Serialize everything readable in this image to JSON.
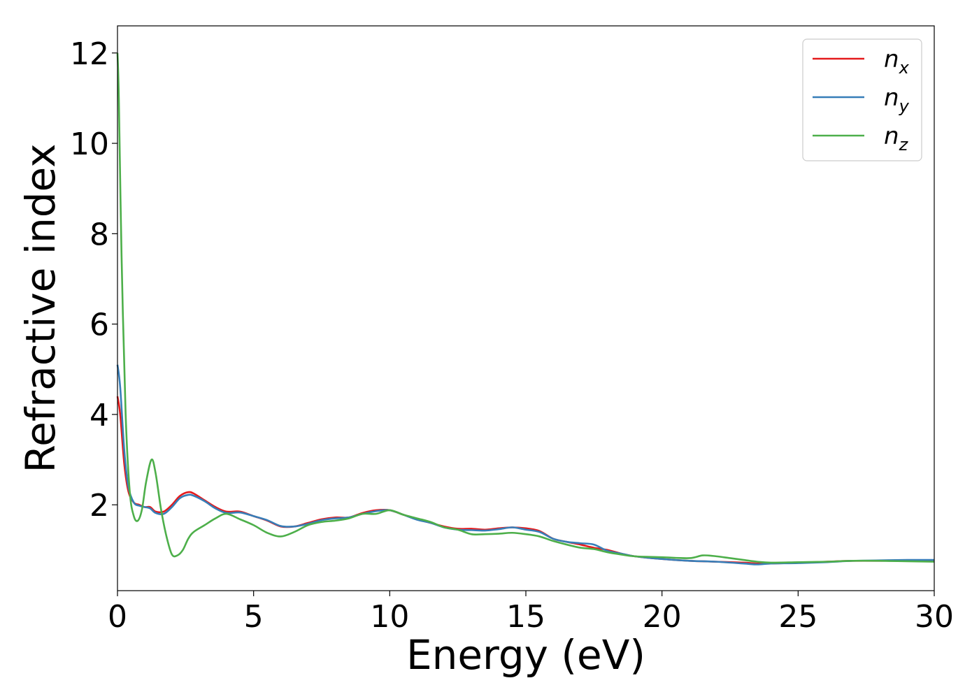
{
  "chart_data": {
    "type": "line",
    "xlabel": "Energy (eV)",
    "ylabel": "Refractive index",
    "xlim": [
      0,
      30
    ],
    "ylim": [
      0.1,
      12.6
    ],
    "xticks": [
      0,
      5,
      10,
      15,
      20,
      25,
      30
    ],
    "yticks": [
      2,
      4,
      6,
      8,
      10,
      12
    ],
    "xtick_labels": [
      "0",
      "5",
      "10",
      "15",
      "20",
      "25",
      "30"
    ],
    "ytick_labels": [
      "2",
      "4",
      "6",
      "8",
      "10",
      "12"
    ],
    "grid": false,
    "legend_position": "top-right",
    "series": [
      {
        "name": "n_x",
        "label_base": "n",
        "label_sub": "x",
        "color": "#e41a1c",
        "x": [
          0,
          0.1,
          0.25,
          0.4,
          0.6,
          0.8,
          1.0,
          1.2,
          1.4,
          1.7,
          2.0,
          2.3,
          2.6,
          2.8,
          3.2,
          3.6,
          4.0,
          4.5,
          5.0,
          5.5,
          6.0,
          6.5,
          7.0,
          7.5,
          8.0,
          8.5,
          9.0,
          9.5,
          10.0,
          10.5,
          11.0,
          11.5,
          12.0,
          12.5,
          13.0,
          13.5,
          14.0,
          14.5,
          15.0,
          15.5,
          16.0,
          16.5,
          17.0,
          17.5,
          18.0,
          18.5,
          19.0,
          20.0,
          21.0,
          22.0,
          23.0,
          23.5,
          24.0,
          25.0,
          26.0,
          27.0,
          28.0,
          29.0,
          30.0
        ],
        "y": [
          4.4,
          4.0,
          2.9,
          2.3,
          2.05,
          2.0,
          1.95,
          1.95,
          1.85,
          1.85,
          2.0,
          2.2,
          2.28,
          2.25,
          2.1,
          1.95,
          1.85,
          1.85,
          1.75,
          1.65,
          1.52,
          1.52,
          1.6,
          1.68,
          1.72,
          1.72,
          1.82,
          1.88,
          1.88,
          1.78,
          1.68,
          1.6,
          1.52,
          1.47,
          1.47,
          1.45,
          1.48,
          1.5,
          1.48,
          1.42,
          1.25,
          1.18,
          1.12,
          1.05,
          1.0,
          0.92,
          0.86,
          0.8,
          0.76,
          0.74,
          0.72,
          0.7,
          0.7,
          0.72,
          0.74,
          0.76,
          0.76,
          0.77,
          0.76
        ]
      },
      {
        "name": "n_y",
        "label_base": "n",
        "label_sub": "y",
        "color": "#377eb8",
        "x": [
          0,
          0.1,
          0.25,
          0.4,
          0.6,
          0.8,
          1.0,
          1.2,
          1.4,
          1.7,
          2.0,
          2.3,
          2.6,
          2.8,
          3.2,
          3.6,
          4.0,
          4.5,
          5.0,
          5.5,
          6.0,
          6.5,
          7.0,
          7.5,
          8.0,
          8.5,
          9.0,
          9.5,
          10.0,
          10.5,
          11.0,
          11.5,
          12.0,
          12.5,
          13.0,
          13.5,
          14.0,
          14.5,
          15.0,
          15.5,
          16.0,
          16.5,
          17.0,
          17.5,
          18.0,
          18.5,
          19.0,
          20.0,
          21.0,
          22.0,
          23.0,
          23.5,
          24.0,
          25.0,
          26.0,
          27.0,
          28.0,
          29.0,
          30.0
        ],
        "y": [
          5.1,
          4.6,
          3.2,
          2.4,
          2.05,
          1.98,
          1.95,
          1.92,
          1.82,
          1.8,
          1.95,
          2.15,
          2.22,
          2.2,
          2.08,
          1.92,
          1.82,
          1.83,
          1.75,
          1.66,
          1.53,
          1.52,
          1.58,
          1.66,
          1.7,
          1.72,
          1.8,
          1.86,
          1.88,
          1.78,
          1.67,
          1.6,
          1.5,
          1.45,
          1.44,
          1.43,
          1.46,
          1.5,
          1.45,
          1.4,
          1.25,
          1.18,
          1.15,
          1.12,
          0.98,
          0.92,
          0.86,
          0.8,
          0.76,
          0.74,
          0.7,
          0.68,
          0.7,
          0.71,
          0.73,
          0.76,
          0.77,
          0.78,
          0.78
        ]
      },
      {
        "name": "n_z",
        "label_base": "n",
        "label_sub": "z",
        "color": "#4daf4a",
        "x": [
          0,
          0.05,
          0.15,
          0.3,
          0.45,
          0.6,
          0.75,
          0.9,
          1.05,
          1.25,
          1.4,
          1.6,
          1.8,
          2.0,
          2.2,
          2.4,
          2.6,
          2.8,
          3.2,
          3.6,
          4.0,
          4.5,
          5.0,
          5.5,
          6.0,
          6.5,
          7.0,
          7.5,
          8.0,
          8.5,
          9.0,
          9.5,
          10.0,
          10.5,
          11.0,
          11.5,
          12.0,
          12.5,
          13.0,
          13.5,
          14.0,
          14.5,
          15.0,
          15.5,
          16.0,
          16.5,
          17.0,
          17.5,
          18.0,
          18.5,
          19.0,
          20.0,
          21.0,
          21.5,
          22.0,
          22.5,
          23.0,
          23.5,
          24.0,
          25.0,
          26.0,
          27.0,
          28.0,
          29.0,
          30.0
        ],
        "y": [
          12.0,
          11.0,
          7.5,
          4.0,
          2.3,
          1.75,
          1.65,
          1.9,
          2.5,
          3.0,
          2.7,
          1.9,
          1.3,
          0.9,
          0.88,
          1.0,
          1.25,
          1.4,
          1.55,
          1.7,
          1.8,
          1.68,
          1.55,
          1.38,
          1.3,
          1.4,
          1.55,
          1.62,
          1.65,
          1.7,
          1.8,
          1.8,
          1.88,
          1.78,
          1.7,
          1.62,
          1.5,
          1.45,
          1.35,
          1.35,
          1.36,
          1.38,
          1.35,
          1.3,
          1.2,
          1.12,
          1.05,
          1.02,
          0.95,
          0.9,
          0.86,
          0.84,
          0.82,
          0.88,
          0.86,
          0.82,
          0.78,
          0.74,
          0.72,
          0.73,
          0.74,
          0.76,
          0.76,
          0.75,
          0.74
        ]
      }
    ]
  }
}
